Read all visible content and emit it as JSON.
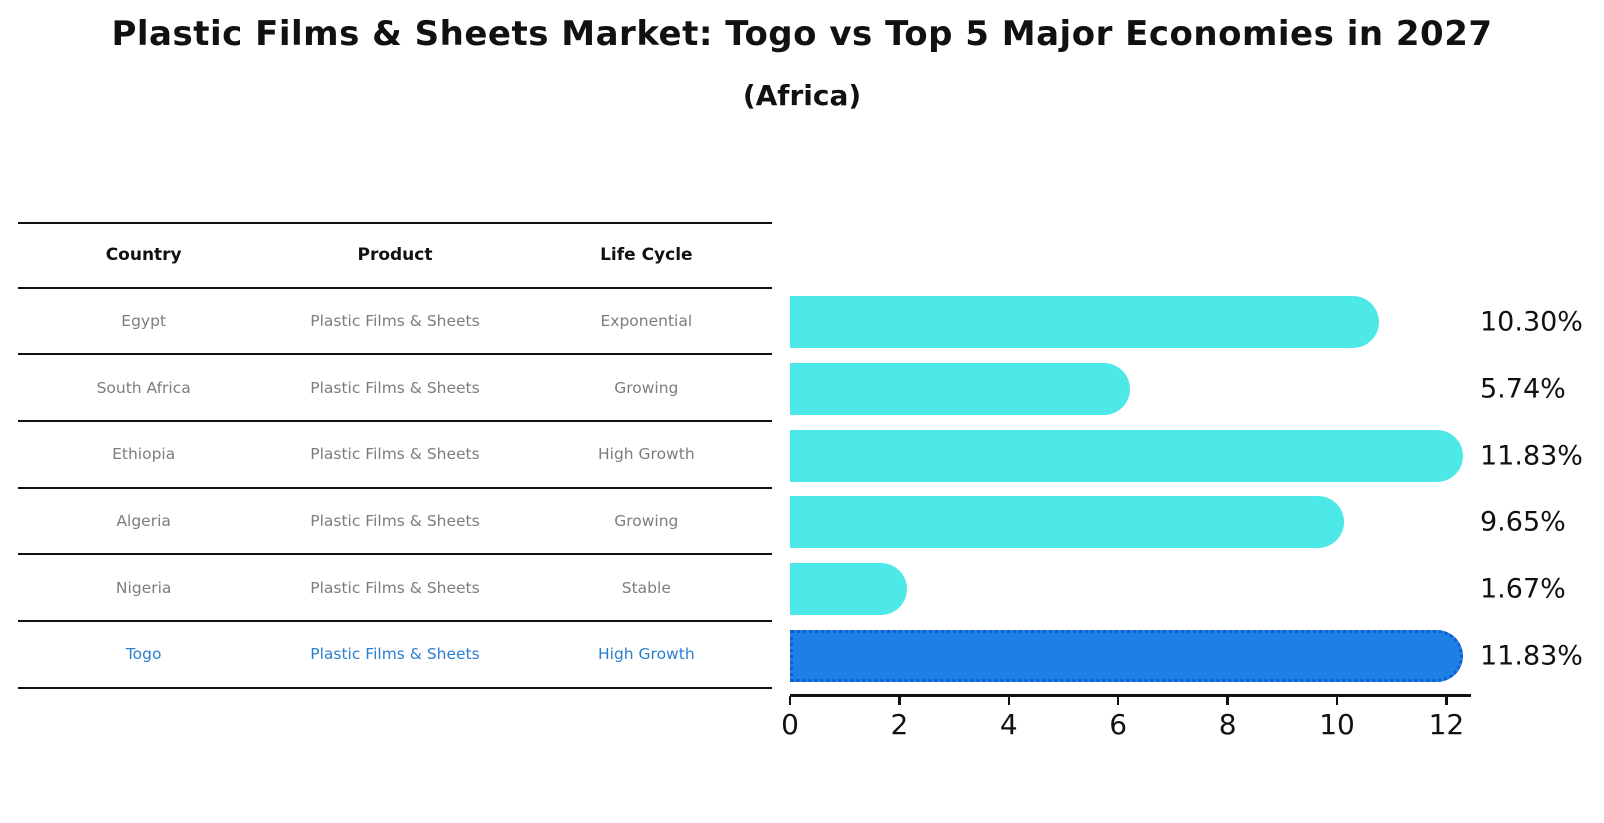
{
  "title": "Plastic Films & Sheets Market: Togo vs Top 5 Major Economies in 2027",
  "subtitle": "(Africa)",
  "table": {
    "headers": [
      "Country",
      "Product",
      "Life Cycle"
    ],
    "rows": [
      {
        "country": "Egypt",
        "product": "Plastic Films & Sheets",
        "life_cycle": "Exponential",
        "highlight": false
      },
      {
        "country": "South Africa",
        "product": "Plastic Films & Sheets",
        "life_cycle": "Growing",
        "highlight": false
      },
      {
        "country": "Ethiopia",
        "product": "Plastic Films & Sheets",
        "life_cycle": "High Growth",
        "highlight": false
      },
      {
        "country": "Algeria",
        "product": "Plastic Films & Sheets",
        "life_cycle": "Growing",
        "highlight": false
      },
      {
        "country": "Nigeria",
        "product": "Plastic Films & Sheets",
        "life_cycle": "Stable",
        "highlight": false
      },
      {
        "country": "Togo",
        "product": "Plastic Films & Sheets",
        "life_cycle": "High Growth",
        "highlight": true
      }
    ]
  },
  "chart_data": {
    "type": "bar",
    "orientation": "horizontal",
    "title": "Plastic Films & Sheets Market: Togo vs Top 5 Major Economies in 2027 (Africa)",
    "categories": [
      "Egypt",
      "South Africa",
      "Ethiopia",
      "Algeria",
      "Nigeria",
      "Togo"
    ],
    "values": [
      10.3,
      5.74,
      11.83,
      9.65,
      1.67,
      11.83
    ],
    "labels": [
      "10.30%",
      "5.74%",
      "11.83%",
      "9.65%",
      "1.67%",
      "11.83%"
    ],
    "highlight_index": 5,
    "xlim": [
      0,
      12.4
    ],
    "xticks": [
      0,
      2,
      4,
      6,
      8,
      10,
      12
    ],
    "grid": false,
    "legend": false,
    "bar_color": "#4DE8E8",
    "highlight_color": "#1E7FE6",
    "highlight_border_color": "#0d5ed1"
  },
  "colors": {
    "text": "#111111",
    "muted_text": "#7d7d7d",
    "highlight_text": "#2b7fd0"
  }
}
